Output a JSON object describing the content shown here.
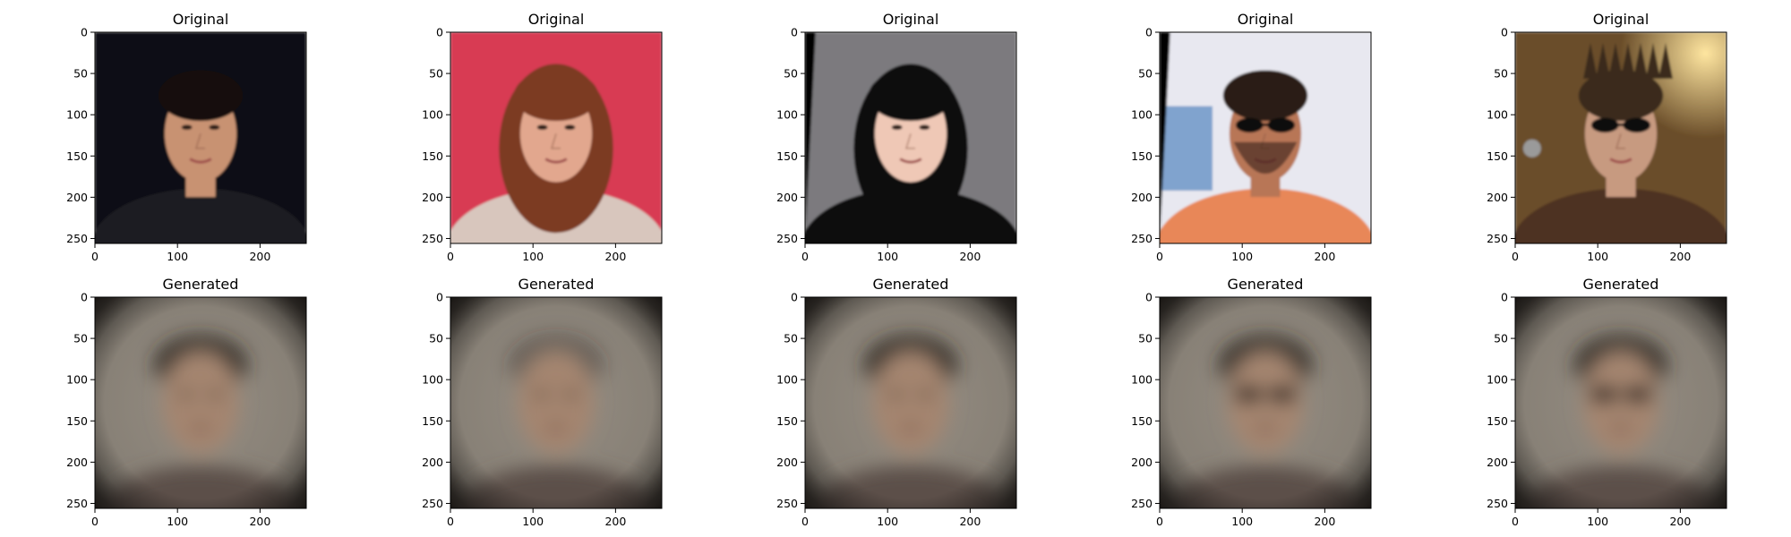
{
  "figure": {
    "rows": [
      {
        "title": "Original",
        "panels": [
          {
            "subject": "young man, dark hair, dark suit, dark background",
            "bg": "#0a0a14"
          },
          {
            "subject": "woman, auburn hair, red background",
            "bg": "#d83a52"
          },
          {
            "subject": "woman, long black hair, grey background",
            "bg": "#7c7a7e"
          },
          {
            "subject": "man, sunglasses, orange shirt, light background",
            "bg": "#e8e8f0"
          },
          {
            "subject": "man, spiky hair, aviator sunglasses, microphone, stage lights",
            "bg": "#6b4e2a"
          }
        ]
      },
      {
        "title": "Generated",
        "panels": [
          {
            "subject": "blurry reconstructed face",
            "bg": "#8a8378"
          },
          {
            "subject": "blurry reconstructed face",
            "bg": "#8a8378"
          },
          {
            "subject": "blurry reconstructed face",
            "bg": "#8a8378"
          },
          {
            "subject": "blurry reconstructed face with sunglasses",
            "bg": "#8a8378"
          },
          {
            "subject": "blurry reconstructed face with sunglasses",
            "bg": "#8a8378"
          }
        ]
      }
    ],
    "x_ticks": [
      "0",
      "100",
      "200"
    ],
    "y_ticks": [
      "0",
      "50",
      "100",
      "150",
      "200",
      "250"
    ],
    "image_extent": [
      0,
      256
    ]
  }
}
